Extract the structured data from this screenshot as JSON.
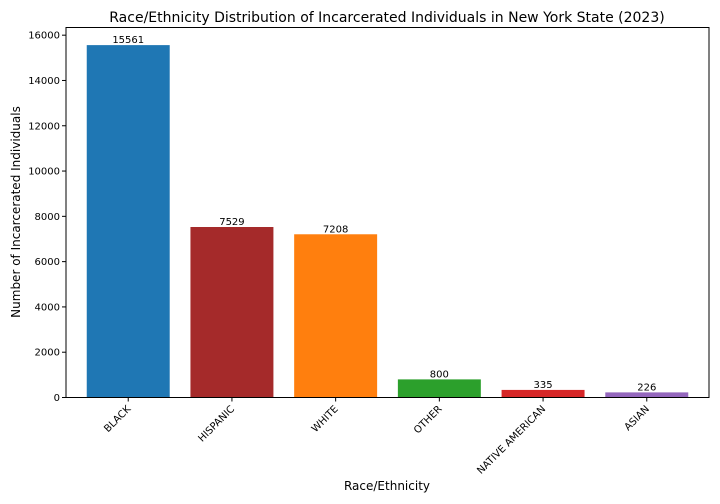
{
  "chart_data": {
    "type": "bar",
    "title": "Race/Ethnicity Distribution of Incarcerated Individuals in New York State (2023)",
    "xlabel": "Race/Ethnicity",
    "ylabel": "Number of Incarcerated Individuals",
    "categories": [
      "BLACK",
      "HISPANIC",
      "WHITE",
      "OTHER",
      "NATIVE AMERICAN",
      "ASIAN"
    ],
    "values": [
      15561,
      7529,
      7208,
      800,
      335,
      226
    ],
    "colors": [
      "#1f77b4",
      "#a52a2a",
      "#ff7f0e",
      "#2ca02c",
      "#d62728",
      "#9467bd"
    ],
    "ylim": [
      0,
      16339
    ],
    "yticks": [
      0,
      2000,
      4000,
      6000,
      8000,
      10000,
      12000,
      14000,
      16000
    ],
    "grid": false,
    "data_labels": true
  }
}
